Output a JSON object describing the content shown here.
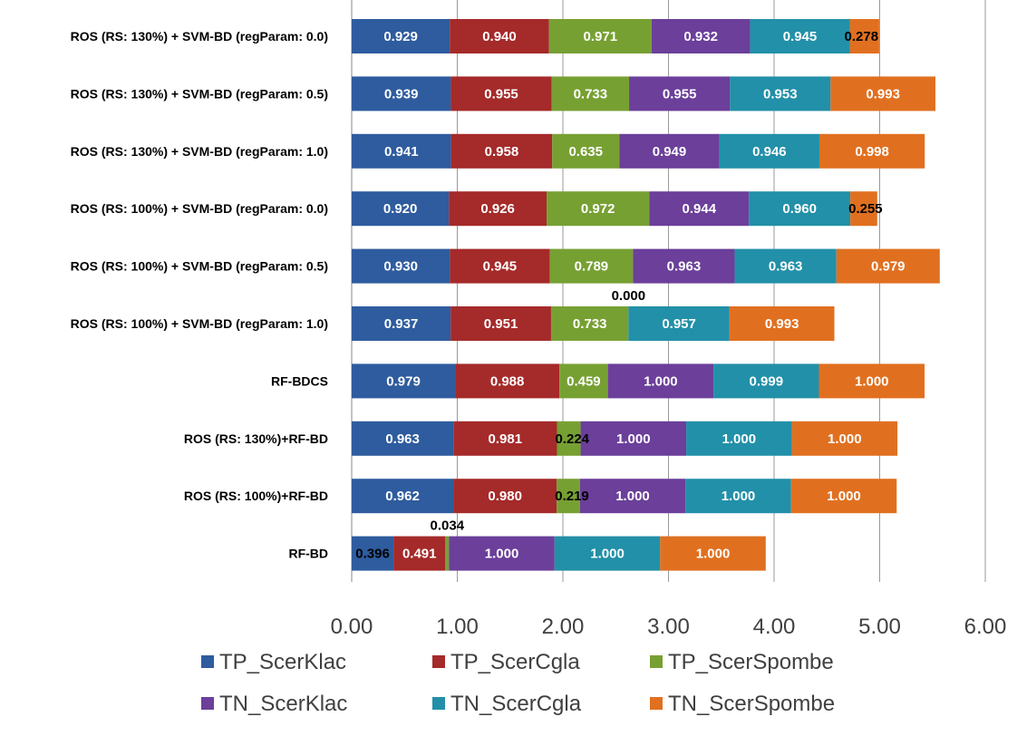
{
  "chart_data": {
    "type": "bar",
    "orientation": "horizontal",
    "stacked": true,
    "categories": [
      "ROS (RS: 130%) + SVM-BD (regParam: 0.0)",
      "ROS (RS: 130%) + SVM-BD (regParam: 0.5)",
      "ROS (RS: 130%) + SVM-BD (regParam: 1.0)",
      "ROS (RS: 100%) + SVM-BD (regParam: 0.0)",
      "ROS (RS: 100%) + SVM-BD (regParam: 0.5)",
      "ROS (RS: 100%) + SVM-BD (regParam: 1.0)",
      "RF-BDCS",
      "ROS (RS: 130%)+RF-BD",
      "ROS (RS: 100%)+RF-BD",
      "RF-BD"
    ],
    "series": [
      {
        "name": "TP_ScerKlac",
        "color": "#2E5C9E",
        "values": [
          0.929,
          0.939,
          0.941,
          0.92,
          0.93,
          0.937,
          0.979,
          0.963,
          0.962,
          0.396
        ],
        "labels": [
          "0.929",
          "0.939",
          "0.941",
          "0.920",
          "0.930",
          "0.937",
          "0.979",
          "0.963",
          "0.962",
          "0.396"
        ]
      },
      {
        "name": "TP_ScerCgla",
        "color": "#A52A2A",
        "values": [
          0.94,
          0.955,
          0.958,
          0.926,
          0.945,
          0.951,
          0.988,
          0.981,
          0.98,
          0.491
        ],
        "labels": [
          "0.940",
          "0.955",
          "0.958",
          "0.926",
          "0.945",
          "0.951",
          "0.988",
          "0.981",
          "0.980",
          "0.491"
        ]
      },
      {
        "name": "TP_ScerSpombe",
        "color": "#77A033",
        "values": [
          0.971,
          0.733,
          0.635,
          0.972,
          0.789,
          0.733,
          0.459,
          0.224,
          0.219,
          0.034
        ],
        "labels": [
          "0.971",
          "0.733",
          "0.635",
          "0.972",
          "0.789",
          "0.733",
          "0.459",
          "0.224",
          "0.219",
          "0.034"
        ]
      },
      {
        "name": "TN_ScerKlac",
        "color": "#6B3F9A",
        "values": [
          0.932,
          0.955,
          0.949,
          0.944,
          0.963,
          0.0,
          1.0,
          1.0,
          1.0,
          1.0
        ],
        "labels": [
          "0.932",
          "0.955",
          "0.949",
          "0.944",
          "0.963",
          "0.000",
          "1.000",
          "1.000",
          "1.000",
          "1.000"
        ]
      },
      {
        "name": "TN_ScerCgla",
        "color": "#2290A8",
        "values": [
          0.945,
          0.953,
          0.946,
          0.96,
          0.963,
          0.957,
          0.999,
          1.0,
          1.0,
          1.0
        ],
        "labels": [
          "0.945",
          "0.953",
          "0.946",
          "0.960",
          "0.963",
          "0.957",
          "0.999",
          "1.000",
          "1.000",
          "1.000"
        ]
      },
      {
        "name": "TN_ScerSpombe",
        "color": "#E07020",
        "values": [
          0.278,
          0.993,
          0.998,
          0.255,
          0.979,
          0.993,
          1.0,
          1.0,
          1.0,
          1.0
        ],
        "labels": [
          "0.278",
          "0.993",
          "0.998",
          "0.255",
          "0.979",
          "0.993",
          "1.000",
          "1.000",
          "1.000",
          "1.000"
        ]
      }
    ],
    "xlim": [
      0,
      6
    ],
    "xticks": [
      "0.00",
      "1.00",
      "2.00",
      "3.00",
      "4.00",
      "5.00",
      "6.00"
    ],
    "grid": true,
    "legend_position": "bottom",
    "title": "",
    "xlabel": "",
    "ylabel": ""
  }
}
